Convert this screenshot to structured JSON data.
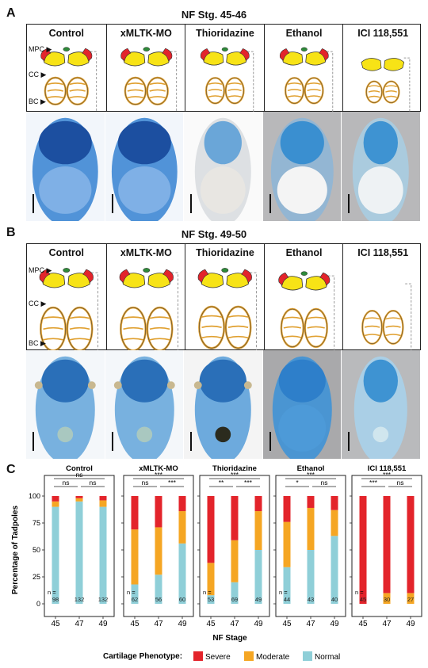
{
  "panels": {
    "A": {
      "letter": "A",
      "title": "NF Stg. 45-46"
    },
    "B": {
      "letter": "B",
      "title": "NF Stg. 49-50"
    },
    "C": {
      "letter": "C"
    }
  },
  "columns": [
    "Control",
    "xMLTK-MO",
    "Thioridazine",
    "Ethanol",
    "ICI 118,551"
  ],
  "cartilage_labels": {
    "mpc": "MPC",
    "cc": "CC",
    "bc": "BC"
  },
  "colors": {
    "severe": "#e3242b",
    "moderate": "#f5a623",
    "normal": "#8fcfd8",
    "cartilage_yellow": "#f7e316",
    "cartilage_outline": "#e0a030",
    "stain_blue": "#2a7fc8"
  },
  "chart_data": [
    {
      "type": "bar",
      "stacked": true,
      "title": "Control",
      "categories": [
        "45",
        "47",
        "49"
      ],
      "n": [
        "98",
        "132",
        "132"
      ],
      "series": [
        {
          "name": "Normal",
          "values": [
            90,
            95,
            90
          ]
        },
        {
          "name": "Moderate",
          "values": [
            5,
            3,
            6
          ]
        },
        {
          "name": "Severe",
          "values": [
            5,
            2,
            4
          ]
        }
      ],
      "significance": [
        {
          "pair": [
            "45",
            "49"
          ],
          "label": "ns"
        },
        {
          "pair": [
            "45",
            "47"
          ],
          "label": "ns"
        },
        {
          "pair": [
            "47",
            "49"
          ],
          "label": "ns"
        }
      ]
    },
    {
      "type": "bar",
      "stacked": true,
      "title": "xMLTK-MO",
      "categories": [
        "45",
        "47",
        "49"
      ],
      "n": [
        "62",
        "56",
        "60"
      ],
      "series": [
        {
          "name": "Normal",
          "values": [
            18,
            27,
            56
          ]
        },
        {
          "name": "Moderate",
          "values": [
            51,
            44,
            30
          ]
        },
        {
          "name": "Severe",
          "values": [
            31,
            29,
            14
          ]
        }
      ],
      "significance": [
        {
          "pair": [
            "45",
            "49"
          ],
          "label": "***"
        },
        {
          "pair": [
            "45",
            "47"
          ],
          "label": "ns"
        },
        {
          "pair": [
            "47",
            "49"
          ],
          "label": "***"
        }
      ]
    },
    {
      "type": "bar",
      "stacked": true,
      "title": "Thioridazine",
      "categories": [
        "45",
        "47",
        "49"
      ],
      "n": [
        "53",
        "69",
        "49"
      ],
      "series": [
        {
          "name": "Normal",
          "values": [
            8,
            20,
            50
          ]
        },
        {
          "name": "Moderate",
          "values": [
            30,
            39,
            36
          ]
        },
        {
          "name": "Severe",
          "values": [
            62,
            41,
            14
          ]
        }
      ],
      "significance": [
        {
          "pair": [
            "45",
            "49"
          ],
          "label": "***"
        },
        {
          "pair": [
            "45",
            "47"
          ],
          "label": "**"
        },
        {
          "pair": [
            "47",
            "49"
          ],
          "label": "***"
        }
      ]
    },
    {
      "type": "bar",
      "stacked": true,
      "title": "Ethanol",
      "categories": [
        "45",
        "47",
        "49"
      ],
      "n": [
        "44",
        "43",
        "40"
      ],
      "series": [
        {
          "name": "Normal",
          "values": [
            34,
            50,
            63
          ]
        },
        {
          "name": "Moderate",
          "values": [
            42,
            39,
            24
          ]
        },
        {
          "name": "Severe",
          "values": [
            24,
            11,
            13
          ]
        }
      ],
      "significance": [
        {
          "pair": [
            "45",
            "49"
          ],
          "label": "***"
        },
        {
          "pair": [
            "45",
            "47"
          ],
          "label": "*"
        },
        {
          "pair": [
            "47",
            "49"
          ],
          "label": "ns"
        }
      ]
    },
    {
      "type": "bar",
      "stacked": true,
      "title": "ICI 118,551",
      "categories": [
        "45",
        "47",
        "49"
      ],
      "n": [
        "45",
        "30",
        "27"
      ],
      "series": [
        {
          "name": "Normal",
          "values": [
            0,
            0,
            0
          ]
        },
        {
          "name": "Moderate",
          "values": [
            0,
            10,
            10
          ]
        },
        {
          "name": "Severe",
          "values": [
            100,
            90,
            90
          ]
        }
      ],
      "significance": [
        {
          "pair": [
            "45",
            "49"
          ],
          "label": "***"
        },
        {
          "pair": [
            "45",
            "47"
          ],
          "label": "***"
        },
        {
          "pair": [
            "47",
            "49"
          ],
          "label": "ns"
        }
      ]
    }
  ],
  "chart_common": {
    "ylabel": "Percentage of Tadpoles",
    "xlabel": "NF Stage",
    "yticks": [
      "0",
      "25",
      "50",
      "75",
      "100"
    ],
    "ylim": [
      0,
      100
    ],
    "n_prefix": "n ="
  },
  "legend": {
    "title": "Cartilage Phenotype:",
    "items": [
      {
        "label": "Severe",
        "color": "#e3242b"
      },
      {
        "label": "Moderate",
        "color": "#f5a623"
      },
      {
        "label": "Normal",
        "color": "#8fcfd8"
      }
    ]
  }
}
